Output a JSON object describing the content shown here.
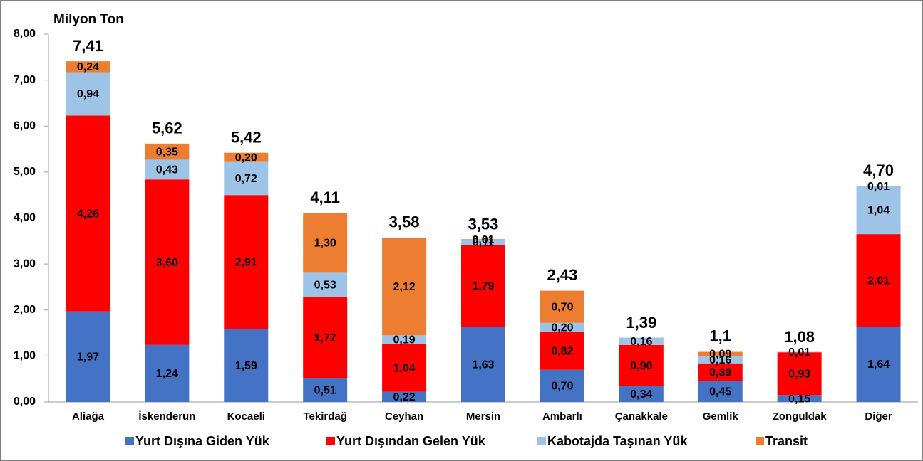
{
  "chart_data": {
    "type": "stacked_bar",
    "y_axis_label": "Milyon Ton",
    "categories": [
      "Aliağa",
      "İskenderun",
      "Kocaeli",
      "Tekirdağ",
      "Ceyhan",
      "Mersin",
      "Ambarlı",
      "Çanakkale",
      "Gemlik",
      "Zonguldak",
      "Diğer"
    ],
    "series": [
      {
        "name": "Yurt Dışına Giden Yük",
        "color": "#4472c4",
        "values": [
          1.97,
          1.24,
          1.59,
          0.51,
          0.22,
          1.63,
          0.7,
          0.34,
          0.45,
          0.15,
          1.64
        ],
        "value_labels": [
          "1,97",
          "1,24",
          "1,59",
          "0,51",
          "0,22",
          "1,63",
          "0,70",
          "0,34",
          "0,45",
          "0,15",
          "1,64"
        ]
      },
      {
        "name": "Yurt Dışından Gelen Yük",
        "color": "#ff0000",
        "values": [
          4.26,
          3.6,
          2.91,
          1.77,
          1.04,
          1.79,
          0.82,
          0.9,
          0.39,
          0.93,
          2.01
        ],
        "value_labels": [
          "4,26",
          "3,60",
          "2,91",
          "1,77",
          "1,04",
          "1,79",
          "0,82",
          "0,90",
          "0,39",
          "0,93",
          "2,01"
        ]
      },
      {
        "name": "Kabotajda Taşınan Yük",
        "color": "#9dc3e6",
        "values": [
          0.94,
          0.43,
          0.72,
          0.53,
          0.19,
          0.11,
          0.2,
          0.16,
          0.16,
          0.01,
          1.04
        ],
        "value_labels": [
          "0,94",
          "0,43",
          "0,72",
          "0,53",
          "0,19",
          "0,11",
          "0,20",
          "0,16",
          "0,16",
          "0,01",
          "1,04"
        ]
      },
      {
        "name": "Transit",
        "color": "#ed7d31",
        "values": [
          0.24,
          0.35,
          0.2,
          1.3,
          2.12,
          0.01,
          0.7,
          null,
          0.09,
          null,
          0.01
        ],
        "value_labels": [
          "0,24",
          "0,35",
          "0,20",
          "1,30",
          "2,12",
          "0,01",
          "0,70",
          null,
          "0,09",
          null,
          "0,01"
        ]
      }
    ],
    "totals": {
      "values": [
        7.41,
        5.62,
        5.42,
        4.11,
        3.58,
        3.53,
        2.43,
        1.39,
        1.1,
        1.08,
        4.7
      ],
      "value_labels": [
        "7,41",
        "5,62",
        "5,42",
        "4,11",
        "3,58",
        "3,53",
        "2,43",
        "1,39",
        "1,1",
        "1,08",
        "4,70"
      ]
    },
    "ylim": [
      0,
      8
    ],
    "yticks": [
      {
        "value": 0,
        "label": "0,00"
      },
      {
        "value": 1,
        "label": "1,00"
      },
      {
        "value": 2,
        "label": "2,00"
      },
      {
        "value": 3,
        "label": "3,00"
      },
      {
        "value": 4,
        "label": "4,00"
      },
      {
        "value": 5,
        "label": "5,00"
      },
      {
        "value": 6,
        "label": "6,00"
      },
      {
        "value": 7,
        "label": "7,00"
      },
      {
        "value": 8,
        "label": "8,00"
      }
    ],
    "legend": "bottom"
  }
}
